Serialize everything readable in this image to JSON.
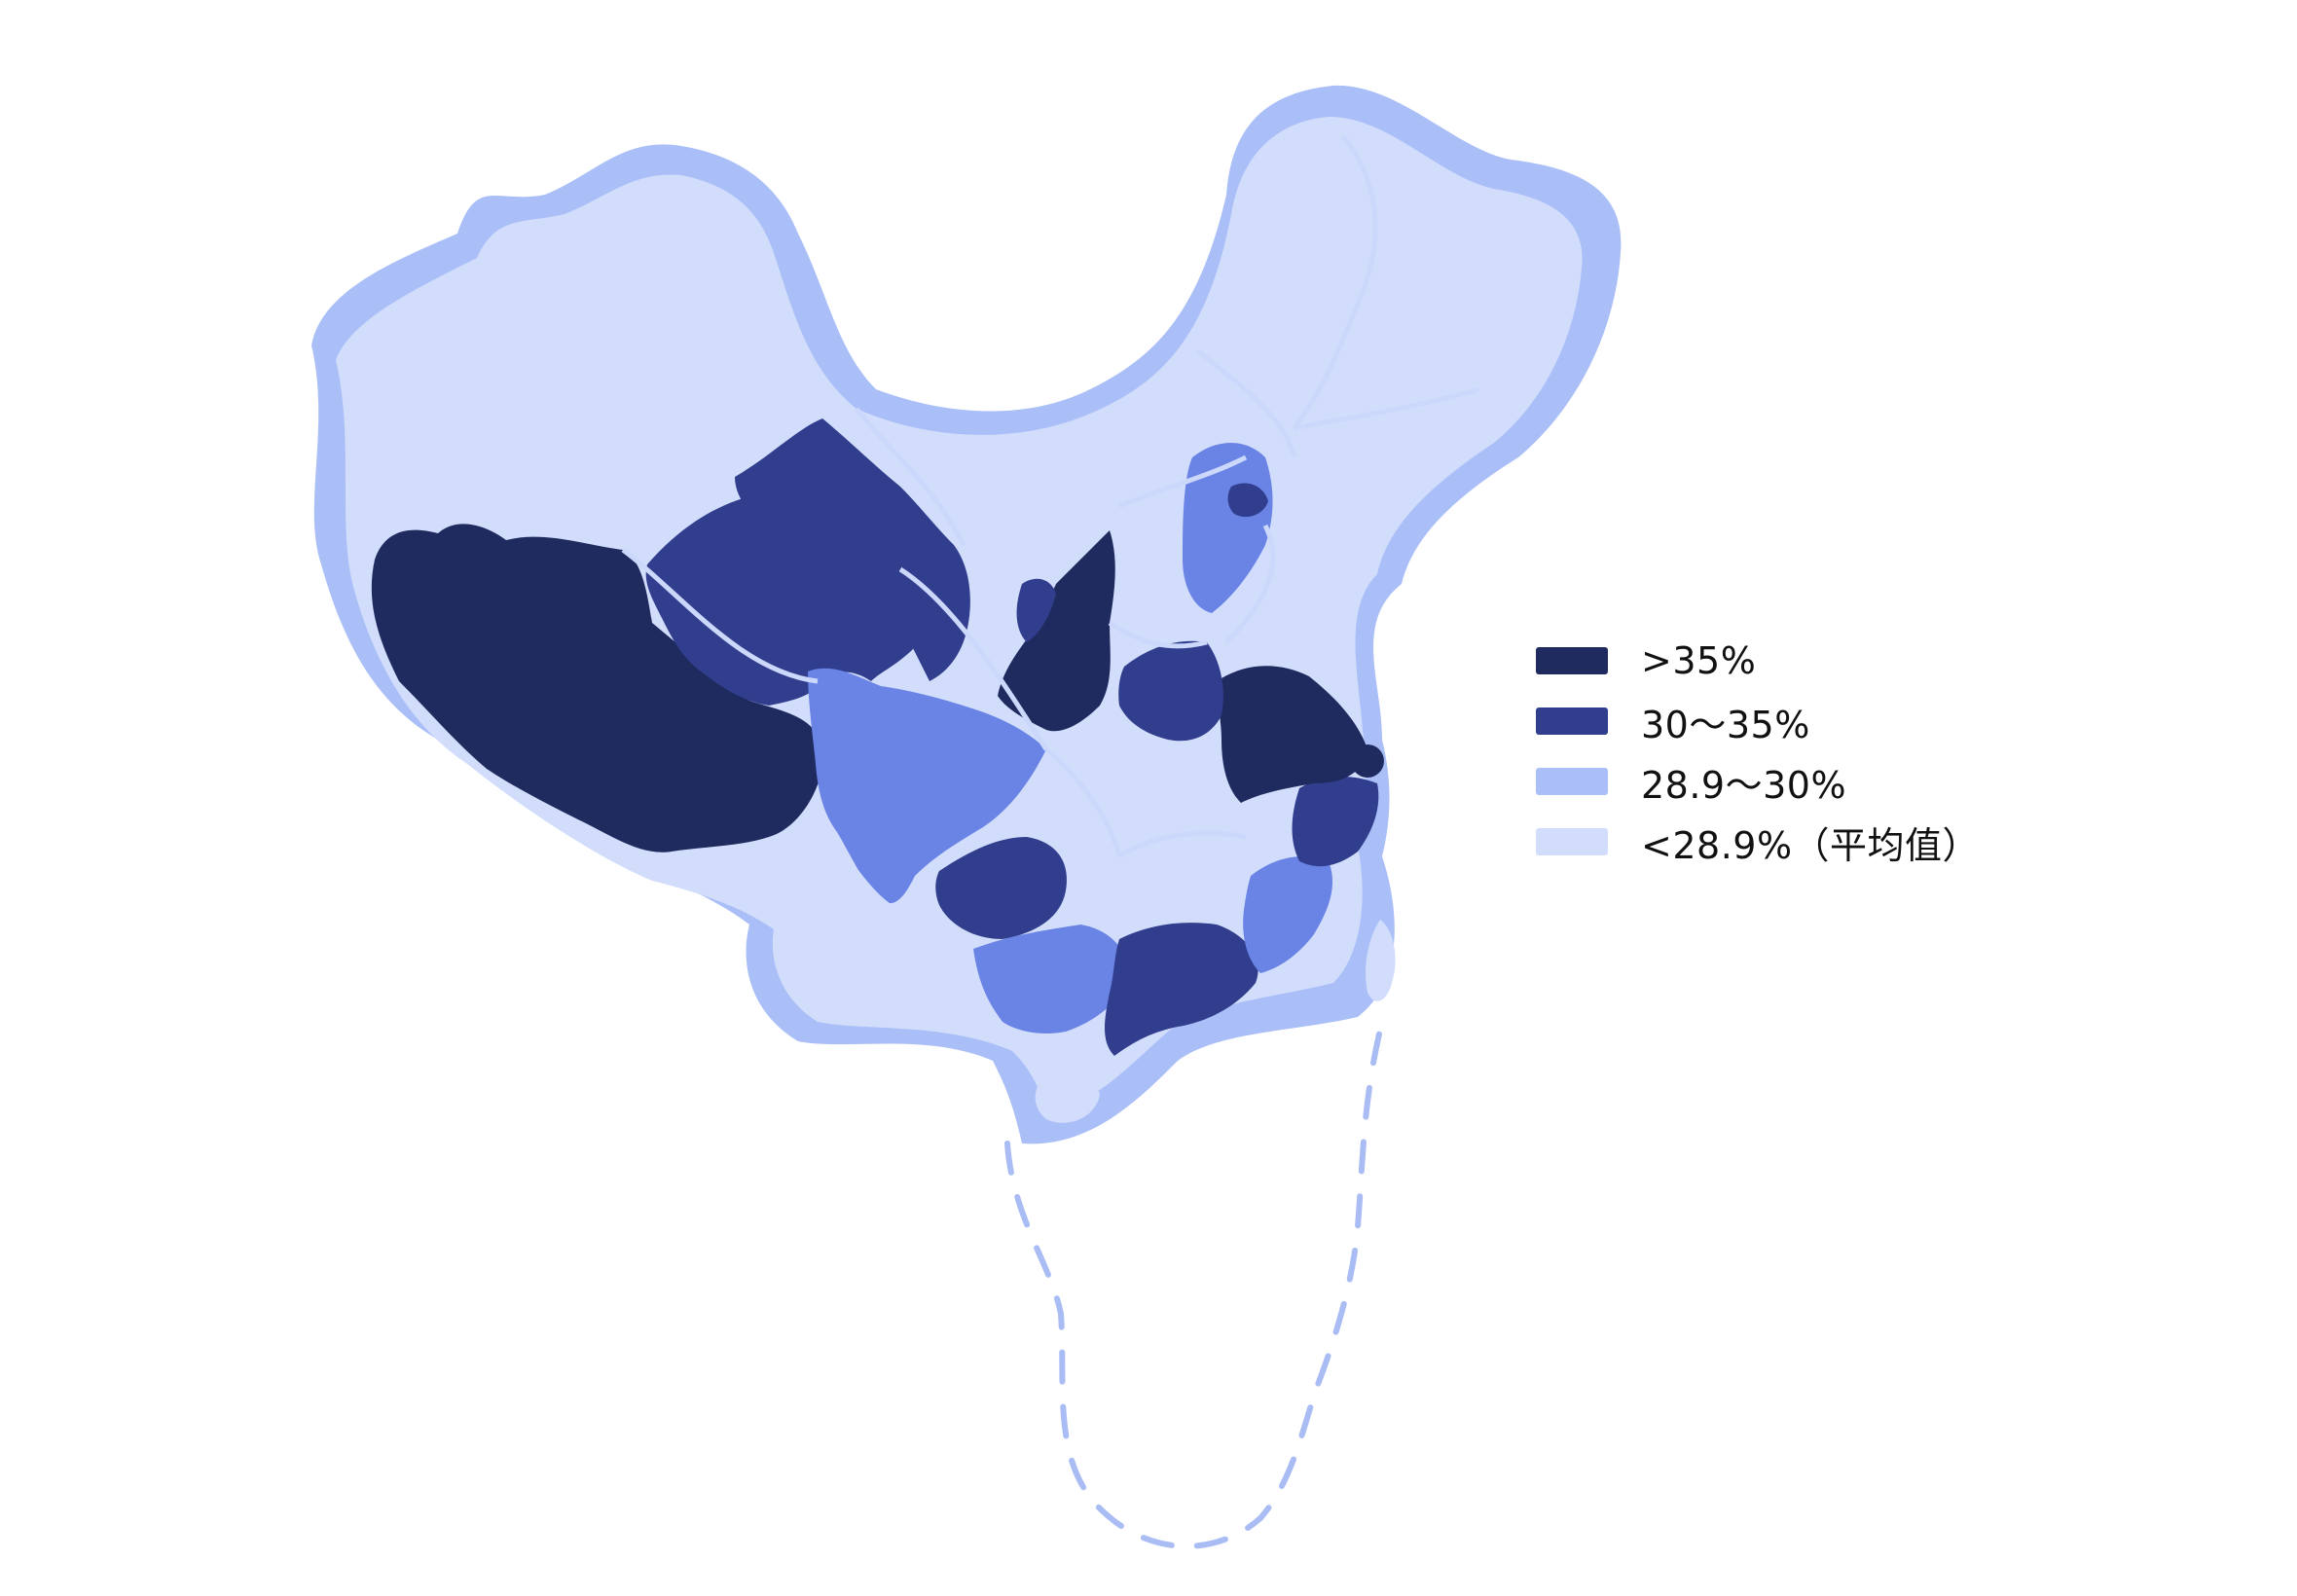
{
  "colors": {
    "background": "#ffffff",
    "outer_glow": "#aabff7",
    "land_light": "#d2ddfc",
    "border_line": "#ccd8fb",
    "dash": "#a9bcf4",
    "level_gt35": "#1f2b5f",
    "level_30_35": "#303e8d",
    "level_289_30": "#6a84e6",
    "level_lt289": "#d2ddfc"
  },
  "legend": {
    "items": [
      {
        "label": ">35%",
        "color": "#1f2b5f"
      },
      {
        "label": "30～35%",
        "color": "#303e8d"
      },
      {
        "label": "28.9～30%",
        "color": "#aabff7"
      },
      {
        "label": "<28.9%（平均值）",
        "color": "#d2ddfc"
      }
    ]
  }
}
